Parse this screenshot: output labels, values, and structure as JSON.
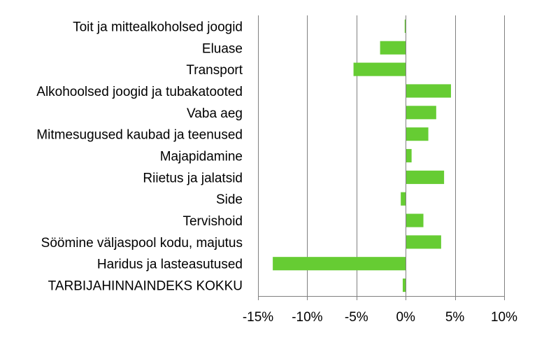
{
  "chart_data": {
    "type": "bar",
    "orientation": "horizontal",
    "categories": [
      "Toit ja mittealkoholsed joogid",
      "Eluase",
      "Transport",
      "Alkohoolsed joogid ja tubakatooted",
      "Vaba aeg",
      "Mitmesugused kaubad ja teenused",
      "Majapidamine",
      "Riietus ja jalatsid",
      "Side",
      "Tervishoid",
      "Söömine väljaspool kodu, majutus",
      "Haridus ja lasteasutused",
      "TARBIJAHINNAINDEKS KOKKU"
    ],
    "values": [
      -0.1,
      -2.6,
      -5.3,
      4.6,
      3.1,
      2.3,
      0.6,
      3.9,
      -0.5,
      1.8,
      3.6,
      -13.5,
      -0.3
    ],
    "xlim": [
      -15,
      10
    ],
    "xticks": [
      -15,
      -10,
      -5,
      0,
      5,
      10
    ],
    "xtick_labels": [
      "-15%",
      "-10%",
      "-5%",
      "0%",
      "5%",
      "10%"
    ],
    "grid": "vertical",
    "title": "",
    "xlabel": "",
    "ylabel": "",
    "bar_color": "#66cc33"
  }
}
